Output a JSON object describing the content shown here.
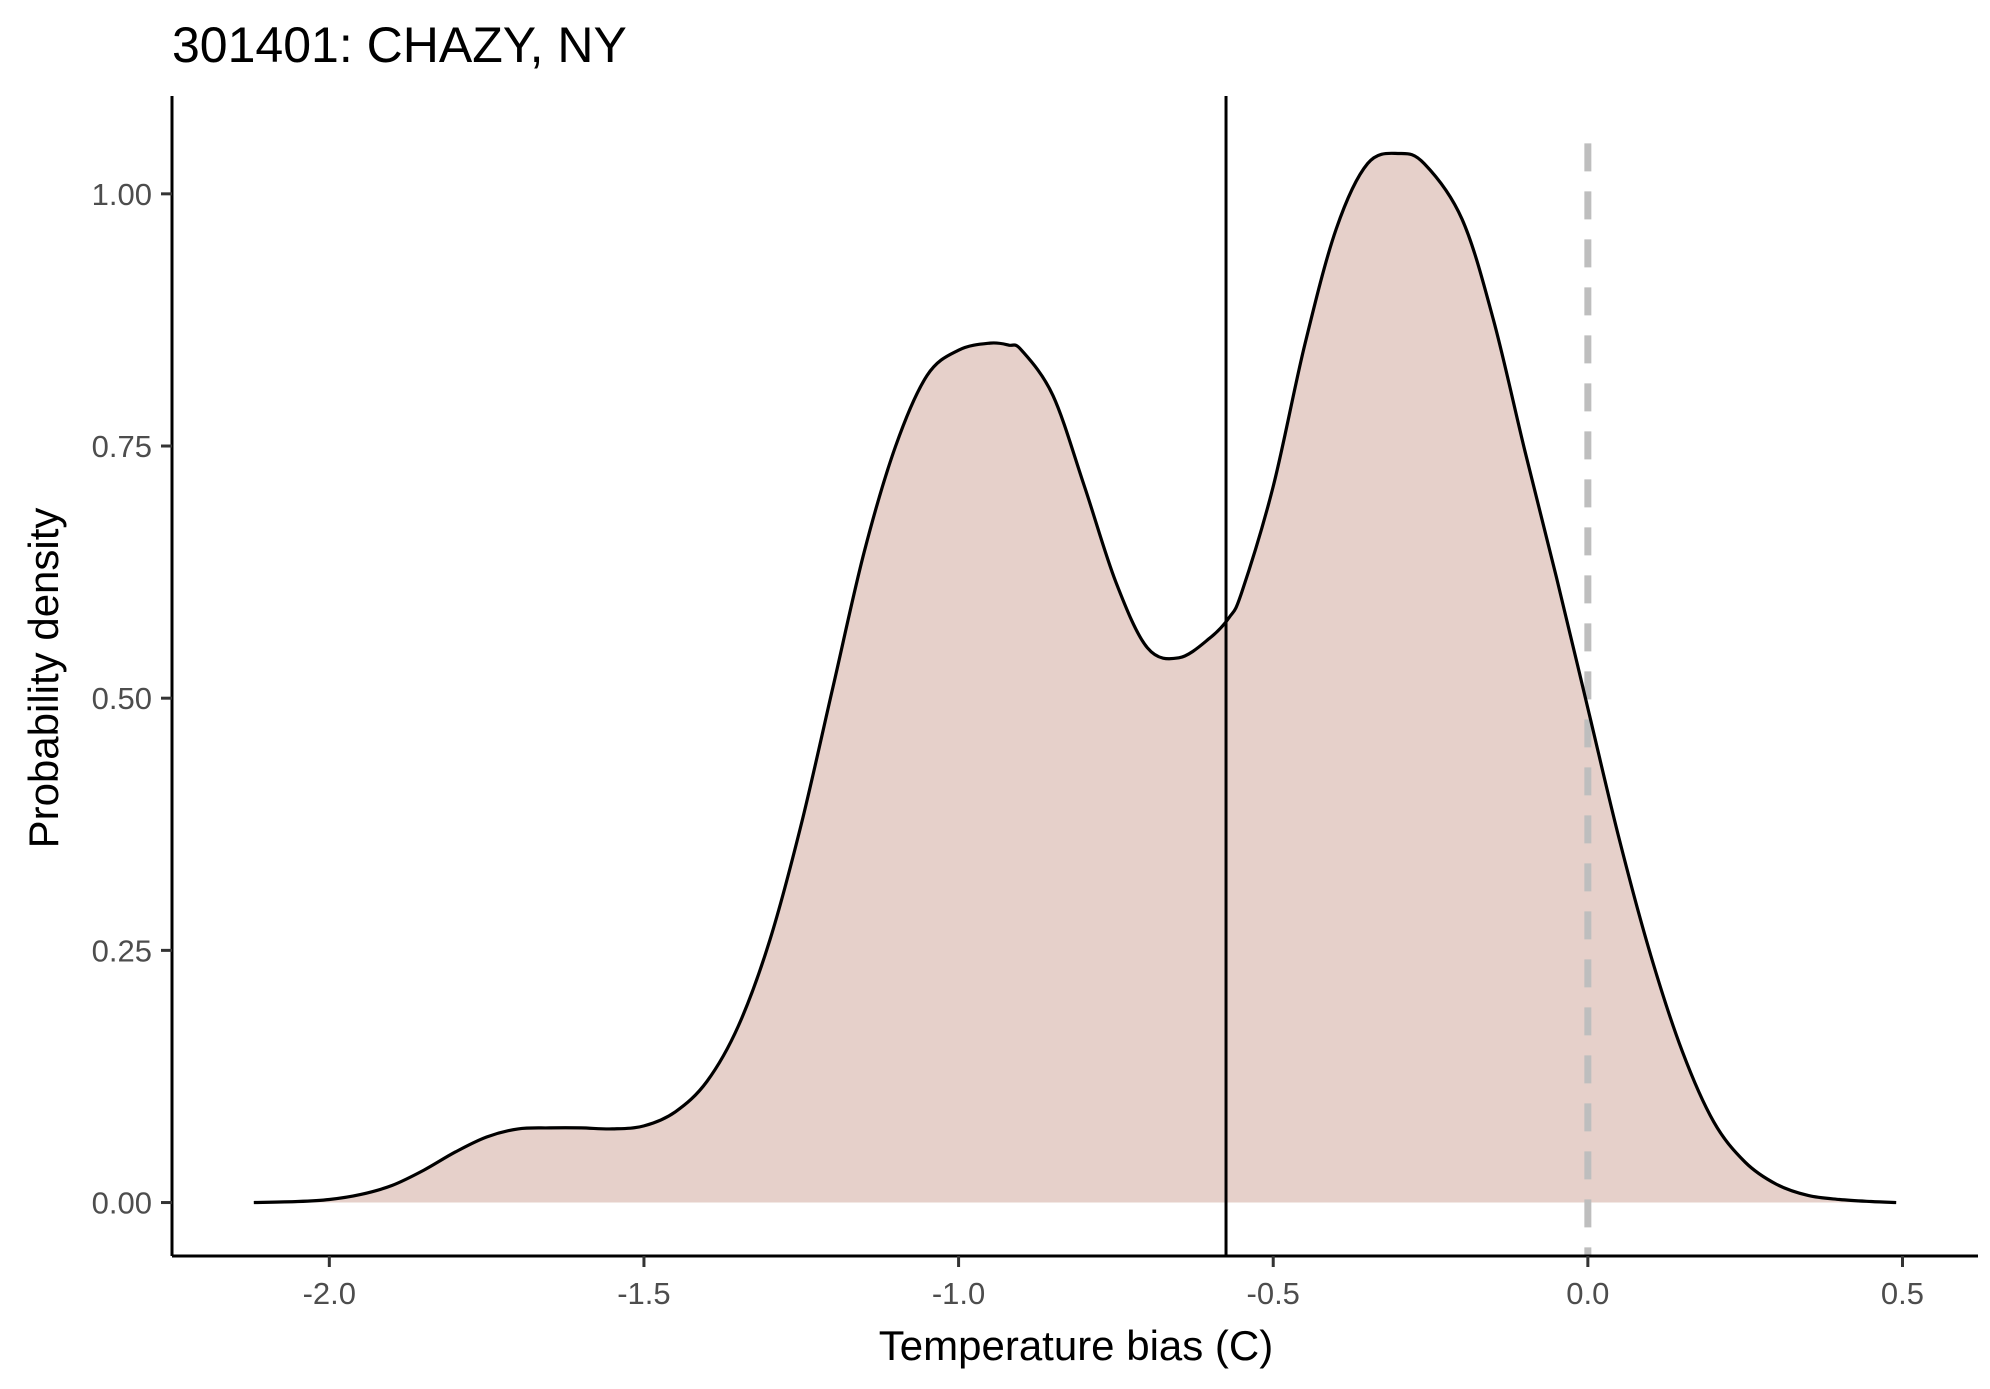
{
  "chart_data": {
    "type": "area",
    "title": "301401: CHAZY, NY",
    "xlabel": "Temperature bias (C)",
    "ylabel": "Probability density",
    "xlim": [
      -2.25,
      0.62
    ],
    "ylim": [
      -0.053,
      1.097
    ],
    "x_ticks": [
      -2.0,
      -1.5,
      -1.0,
      -0.5,
      0.0,
      0.5
    ],
    "x_tick_labels": [
      "-2.0",
      "-1.5",
      "-1.0",
      "-0.5",
      "0.0",
      "0.5"
    ],
    "y_ticks": [
      0.0,
      0.25,
      0.5,
      0.75,
      1.0
    ],
    "y_tick_labels": [
      "0.00",
      "0.25",
      "0.50",
      "0.75",
      "1.00"
    ],
    "grid": false,
    "legend": "none",
    "series": [
      {
        "x": [
          -2.12,
          -2.05,
          -2.0,
          -1.95,
          -1.9,
          -1.85,
          -1.8,
          -1.75,
          -1.7,
          -1.65,
          -1.6,
          -1.55,
          -1.5,
          -1.45,
          -1.4,
          -1.35,
          -1.3,
          -1.25,
          -1.2,
          -1.15,
          -1.1,
          -1.05,
          -1.0,
          -0.95,
          -0.92,
          -0.9,
          -0.85,
          -0.8,
          -0.75,
          -0.7,
          -0.65,
          -0.6,
          -0.57,
          -0.55,
          -0.5,
          -0.45,
          -0.4,
          -0.35,
          -0.3,
          -0.26,
          -0.2,
          -0.15,
          -0.1,
          -0.05,
          0.0,
          0.05,
          0.1,
          0.15,
          0.2,
          0.25,
          0.3,
          0.35,
          0.4,
          0.45,
          0.49
        ],
        "y": [
          0.0,
          0.001,
          0.003,
          0.008,
          0.017,
          0.032,
          0.05,
          0.065,
          0.073,
          0.074,
          0.074,
          0.073,
          0.076,
          0.09,
          0.12,
          0.175,
          0.26,
          0.375,
          0.51,
          0.645,
          0.75,
          0.82,
          0.845,
          0.852,
          0.85,
          0.845,
          0.8,
          0.71,
          0.615,
          0.55,
          0.54,
          0.56,
          0.58,
          0.605,
          0.71,
          0.85,
          0.965,
          1.03,
          1.04,
          1.03,
          0.975,
          0.875,
          0.745,
          0.62,
          0.49,
          0.36,
          0.245,
          0.15,
          0.08,
          0.04,
          0.018,
          0.007,
          0.003,
          0.001,
          0.0
        ]
      }
    ],
    "vertical_lines": [
      {
        "x": -0.575,
        "style": "solid",
        "color": "#000000"
      },
      {
        "x": 0.0,
        "style": "dashed",
        "color": "#bebebe"
      }
    ],
    "fill_color": "#e6d0ca",
    "line_color": "#000000"
  }
}
